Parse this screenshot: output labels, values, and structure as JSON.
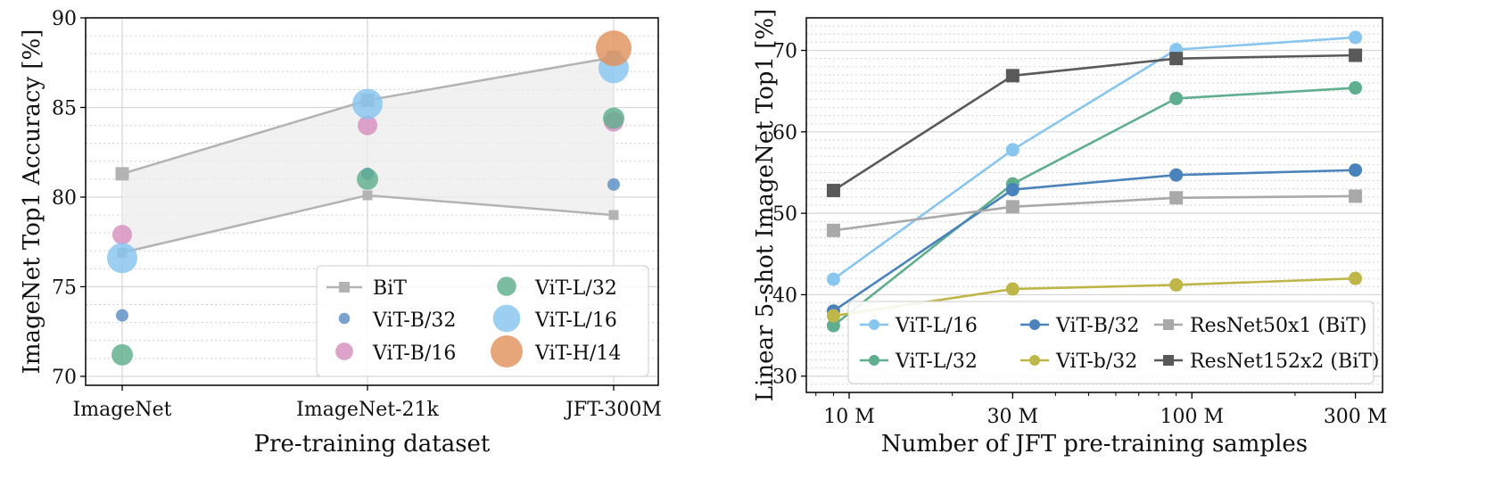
{
  "chart_data": [
    {
      "type": "scatter",
      "xlabel": "Pre-training dataset",
      "ylabel": "ImageNet Top1 Accuracy [%]",
      "categories": [
        "ImageNet",
        "ImageNet-21k",
        "JFT-300M"
      ],
      "ylim": [
        69.5,
        90
      ],
      "yticks": [
        70,
        75,
        80,
        85,
        90
      ],
      "grid": true,
      "legend_position": "lower-right",
      "bit_band": {
        "name": "BiT",
        "upper": [
          81.3,
          85.4,
          87.8
        ],
        "lower": [
          76.9,
          80.1,
          79.0
        ],
        "color": "#b3b3b3"
      },
      "series": [
        {
          "name": "ViT-B/32",
          "values": [
            73.4,
            81.3,
            80.7
          ],
          "color": "#5b8fc4",
          "size": "smallest"
        },
        {
          "name": "ViT-B/16",
          "values": [
            77.9,
            84.0,
            84.2
          ],
          "color": "#d68fc0",
          "size": "small"
        },
        {
          "name": "ViT-L/32",
          "values": [
            71.2,
            81.0,
            84.4
          ],
          "color": "#5fae8e",
          "size": "medium"
        },
        {
          "name": "ViT-L/16",
          "values": [
            76.6,
            85.2,
            87.2
          ],
          "color": "#88c5ef",
          "size": "large"
        },
        {
          "name": "ViT-H/14",
          "values": [
            null,
            null,
            88.3
          ],
          "color": "#e0925c",
          "size": "largest"
        }
      ],
      "legend_order": [
        "BiT",
        "ViT-L/32",
        "ViT-B/32",
        "ViT-L/16",
        "ViT-B/16",
        "ViT-H/14"
      ]
    },
    {
      "type": "line",
      "xlabel": "Number of JFT pre-training samples",
      "ylabel": "Linear 5-shot ImageNet Top1 [%]",
      "x_scale": "log",
      "x_tick_labels": [
        "10 M",
        "30 M",
        "100 M",
        "300 M"
      ],
      "x_ticks": [
        10,
        30,
        100,
        300
      ],
      "x": [
        9,
        30,
        90,
        300
      ],
      "ylim": [
        28,
        74
      ],
      "yticks": [
        30,
        40,
        50,
        60,
        70
      ],
      "grid": true,
      "legend_position": "lower-right",
      "series": [
        {
          "name": "ViT-L/16",
          "values": [
            41.9,
            57.8,
            70.1,
            71.6
          ],
          "color": "#88c5ef",
          "marker": "circle"
        },
        {
          "name": "ViT-L/32",
          "values": [
            36.2,
            53.6,
            64.1,
            65.4
          ],
          "color": "#5fae8e",
          "marker": "circle"
        },
        {
          "name": "ViT-B/32",
          "values": [
            38.0,
            52.9,
            54.7,
            55.3
          ],
          "color": "#4a83bb",
          "marker": "circle"
        },
        {
          "name": "ViT-b/32",
          "values": [
            37.4,
            40.7,
            41.2,
            42.0
          ],
          "color": "#bfb64a",
          "marker": "circle"
        },
        {
          "name": "ResNet50x1 (BiT)",
          "values": [
            47.9,
            50.8,
            51.9,
            52.1
          ],
          "color": "#a9a9a9",
          "marker": "square"
        },
        {
          "name": "ResNet152x2 (BiT)",
          "values": [
            52.8,
            66.9,
            69.0,
            69.4
          ],
          "color": "#595959",
          "marker": "square"
        }
      ],
      "legend_order": [
        "ViT-L/16",
        "ViT-B/32",
        "ResNet50x1 (BiT)",
        "ViT-L/32",
        "ViT-b/32",
        "ResNet152x2 (BiT)"
      ]
    }
  ]
}
